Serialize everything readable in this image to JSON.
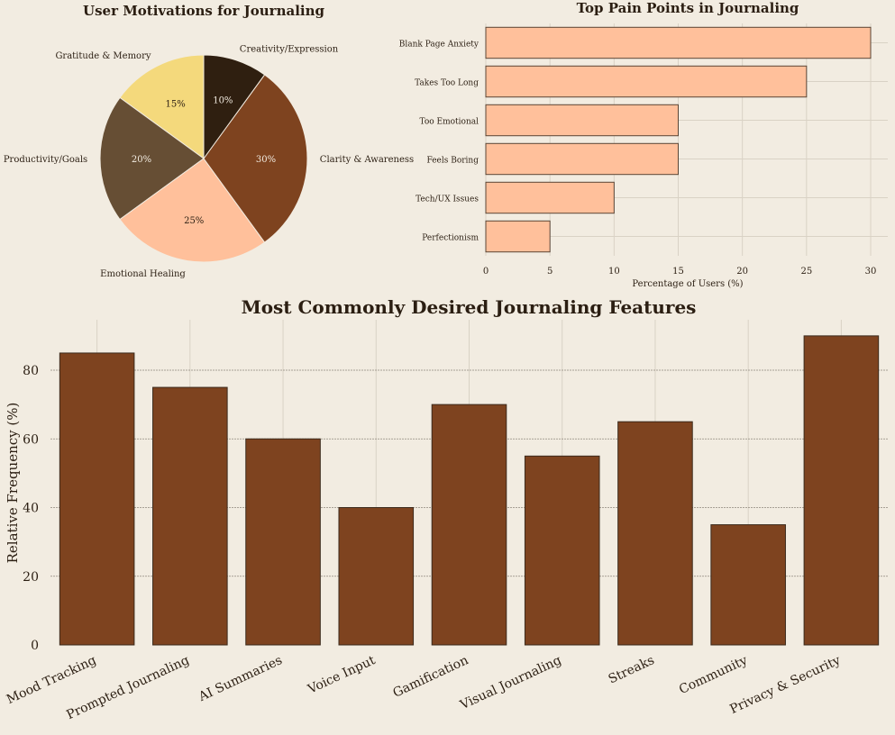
{
  "chart_data": [
    {
      "type": "pie",
      "title": "User Motivations for Journaling",
      "slices": [
        {
          "label": "Gratitude & Memory",
          "value": 15,
          "pct_label": "15%",
          "color": "#f4d97c"
        },
        {
          "label": "Productivity/Goals",
          "value": 20,
          "pct_label": "20%",
          "color": "#664e34"
        },
        {
          "label": "Emotional Healing",
          "value": 25,
          "pct_label": "25%",
          "color": "#ffc09b"
        },
        {
          "label": "Clarity & Awareness",
          "value": 30,
          "pct_label": "30%",
          "color": "#7e431f"
        },
        {
          "label": "Creativity/Expression",
          "value": 10,
          "pct_label": "10%",
          "color": "#2f1f10"
        }
      ]
    },
    {
      "type": "bar",
      "orientation": "horizontal",
      "title": "Top Pain Points in Journaling",
      "categories": [
        "Blank Page Anxiety",
        "Takes Too Long",
        "Too Emotional",
        "Feels Boring",
        "Tech/UX Issues",
        "Perfectionism"
      ],
      "values": [
        30,
        25,
        15,
        15,
        10,
        5
      ],
      "xlabel": "Percentage of Users (%)",
      "ylabel": "",
      "xlim": [
        0,
        31.5
      ],
      "xticks": [
        0,
        5,
        10,
        15,
        20,
        25,
        30
      ],
      "grid": true,
      "color": "#ffc09b"
    },
    {
      "type": "bar",
      "title": "Most Commonly Desired Journaling Features",
      "categories": [
        "Mood Tracking",
        "Prompted Journaling",
        "AI Summaries",
        "Voice Input",
        "Gamification",
        "Visual Journaling",
        "Streaks",
        "Community",
        "Privacy & Security"
      ],
      "values": [
        85,
        75,
        60,
        40,
        70,
        55,
        65,
        35,
        90
      ],
      "xlabel": "",
      "ylabel": "Relative Frequency (%)",
      "ylim": [
        0,
        94.5
      ],
      "yticks": [
        0,
        20,
        40,
        60,
        80
      ],
      "grid": true,
      "color": "#7e431f"
    }
  ]
}
